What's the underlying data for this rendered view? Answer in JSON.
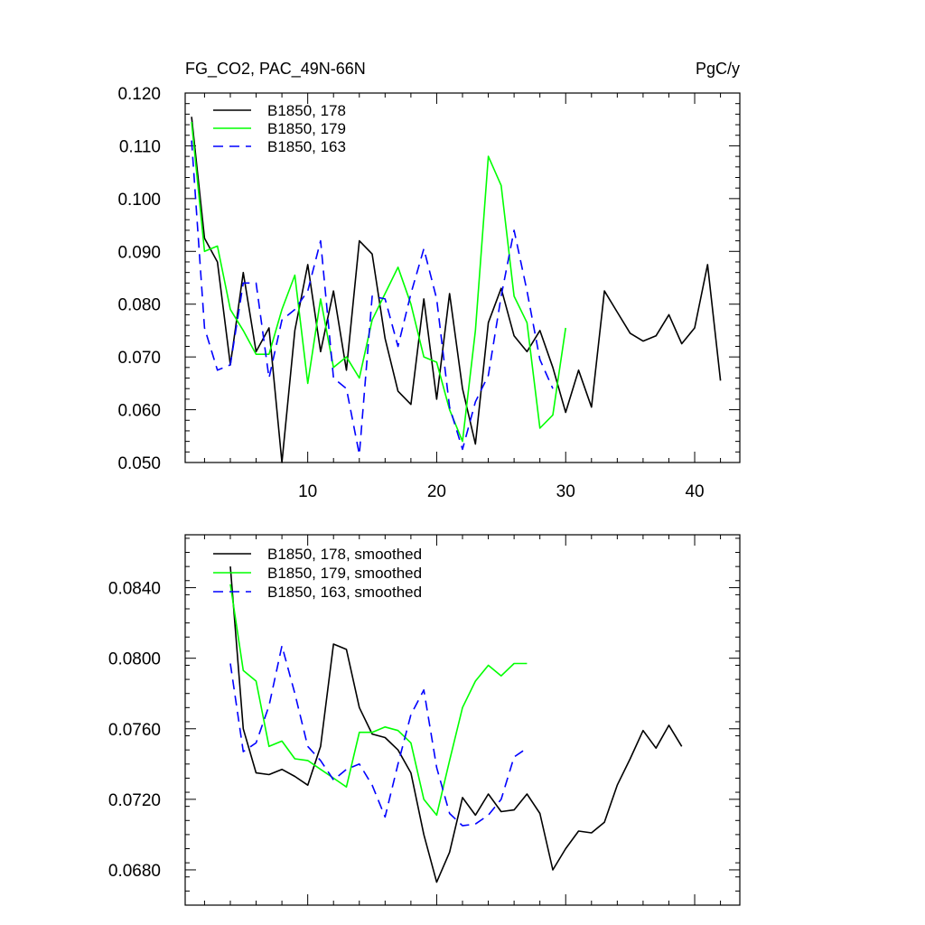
{
  "chart_data": [
    {
      "type": "line",
      "title": "FG_CO2, PAC_49N-66N",
      "units": "PgC/y",
      "xlim": [
        0.5,
        43.5
      ],
      "ylim": [
        0.05,
        0.12
      ],
      "x_ticks": [
        10,
        20,
        30,
        40
      ],
      "x_tick_labels": [
        "10",
        "20",
        "30",
        "40"
      ],
      "y_ticks": [
        0.05,
        0.06,
        0.07,
        0.08,
        0.09,
        0.1,
        0.11,
        0.12
      ],
      "y_tick_labels": [
        "0.050",
        "0.060",
        "0.070",
        "0.080",
        "0.090",
        "0.100",
        "0.110",
        "0.120"
      ],
      "legend_position": "top-left",
      "series": [
        {
          "name": "B1850, 178",
          "color": "#000000",
          "dash": "solid",
          "x": [
            1,
            2,
            3,
            4,
            5,
            6,
            7,
            8,
            9,
            10,
            11,
            12,
            13,
            14,
            15,
            16,
            17,
            18,
            19,
            20,
            21,
            22,
            23,
            24,
            25,
            26,
            27,
            28,
            29,
            30,
            31,
            32,
            33,
            34,
            35,
            36,
            37,
            38,
            39,
            40,
            41,
            42
          ],
          "y": [
            0.1155,
            0.0925,
            0.088,
            0.0685,
            0.086,
            0.071,
            0.0755,
            0.05,
            0.075,
            0.0875,
            0.071,
            0.0825,
            0.0675,
            0.092,
            0.0895,
            0.0735,
            0.0635,
            0.061,
            0.081,
            0.062,
            0.082,
            0.064,
            0.0535,
            0.0765,
            0.083,
            0.074,
            0.071,
            0.075,
            0.068,
            0.0595,
            0.0675,
            0.0605,
            0.0825,
            0.0785,
            0.0745,
            0.073,
            0.074,
            0.078,
            0.0725,
            0.0755,
            0.0875,
            0.0655
          ]
        },
        {
          "name": "B1850, 179",
          "color": "#00ff00",
          "dash": "solid",
          "x": [
            1,
            2,
            3,
            4,
            5,
            6,
            7,
            8,
            9,
            10,
            11,
            12,
            13,
            14,
            15,
            16,
            17,
            18,
            19,
            20,
            21,
            22,
            23,
            24,
            25,
            26,
            27,
            28,
            29,
            30
          ],
          "y": [
            0.1145,
            0.09,
            0.091,
            0.079,
            0.075,
            0.0705,
            0.0705,
            0.079,
            0.0855,
            0.065,
            0.081,
            0.068,
            0.07,
            0.066,
            0.077,
            0.082,
            0.087,
            0.08,
            0.07,
            0.069,
            0.06,
            0.054,
            0.075,
            0.108,
            0.1025,
            0.0815,
            0.0765,
            0.0565,
            0.059,
            0.0755
          ]
        },
        {
          "name": "B1850, 163",
          "color": "#0000ff",
          "dash": "dashed",
          "x": [
            1,
            2,
            3,
            4,
            5,
            6,
            7,
            8,
            9,
            10,
            11,
            12,
            13,
            14,
            15,
            16,
            17,
            18,
            19,
            20,
            21,
            22,
            23,
            24,
            25,
            26,
            27,
            28,
            29
          ],
          "y": [
            0.111,
            0.0755,
            0.0675,
            0.0685,
            0.084,
            0.084,
            0.066,
            0.077,
            0.079,
            0.0825,
            0.092,
            0.066,
            0.064,
            0.0515,
            0.0815,
            0.081,
            0.072,
            0.082,
            0.0905,
            0.081,
            0.0605,
            0.0525,
            0.0615,
            0.0665,
            0.0815,
            0.094,
            0.0825,
            0.0695,
            0.064
          ]
        }
      ]
    },
    {
      "type": "line",
      "xlim": [
        0.5,
        43.5
      ],
      "ylim": [
        0.066,
        0.087
      ],
      "x_ticks": [
        10,
        20,
        30,
        40
      ],
      "y_ticks": [
        0.068,
        0.072,
        0.076,
        0.08,
        0.084
      ],
      "y_tick_labels": [
        "0.0680",
        "0.0720",
        "0.0760",
        "0.0800",
        "0.0840"
      ],
      "legend_position": "top-left",
      "series": [
        {
          "name": "B1850, 178, smoothed",
          "color": "#000000",
          "dash": "solid",
          "x": [
            4,
            5,
            6,
            7,
            8,
            9,
            10,
            11,
            12,
            13,
            14,
            15,
            16,
            17,
            18,
            19,
            20,
            21,
            22,
            23,
            24,
            25,
            26,
            27,
            28,
            29,
            30,
            31,
            32,
            33,
            34,
            35,
            36,
            37,
            38,
            39
          ],
          "y": [
            0.0852,
            0.076,
            0.0735,
            0.0734,
            0.0737,
            0.0733,
            0.0728,
            0.075,
            0.0808,
            0.0805,
            0.0772,
            0.0757,
            0.0755,
            0.0748,
            0.0735,
            0.07,
            0.0673,
            0.069,
            0.0721,
            0.0711,
            0.0723,
            0.0713,
            0.0714,
            0.0723,
            0.0712,
            0.068,
            0.0692,
            0.0702,
            0.0701,
            0.0707,
            0.0728,
            0.0743,
            0.0759,
            0.0749,
            0.0762,
            0.075
          ]
        },
        {
          "name": "B1850, 179, smoothed",
          "color": "#00ff00",
          "dash": "solid",
          "x": [
            4,
            5,
            6,
            7,
            8,
            9,
            10,
            11,
            12,
            13,
            14,
            15,
            16,
            17,
            18,
            19,
            20,
            21,
            22,
            23,
            24,
            25,
            26,
            27
          ],
          "y": [
            0.0842,
            0.0793,
            0.0787,
            0.075,
            0.0753,
            0.0743,
            0.0742,
            0.0737,
            0.0732,
            0.0727,
            0.0758,
            0.0758,
            0.0761,
            0.0759,
            0.0752,
            0.072,
            0.0711,
            0.0742,
            0.0772,
            0.0787,
            0.0796,
            0.079,
            0.0797,
            0.0797
          ]
        },
        {
          "name": "B1850, 163, smoothed",
          "color": "#0000ff",
          "dash": "dashed",
          "x": [
            4,
            5,
            6,
            7,
            8,
            9,
            10,
            11,
            12,
            13,
            14,
            15,
            16,
            17,
            18,
            19,
            20,
            21,
            22,
            23,
            24,
            25,
            26,
            27
          ],
          "y": [
            0.0797,
            0.0747,
            0.0752,
            0.0773,
            0.0807,
            0.078,
            0.075,
            0.0742,
            0.0731,
            0.0737,
            0.074,
            0.0728,
            0.071,
            0.074,
            0.0768,
            0.0782,
            0.0738,
            0.0712,
            0.0705,
            0.0706,
            0.0711,
            0.072,
            0.0744,
            0.0749
          ]
        }
      ]
    }
  ]
}
